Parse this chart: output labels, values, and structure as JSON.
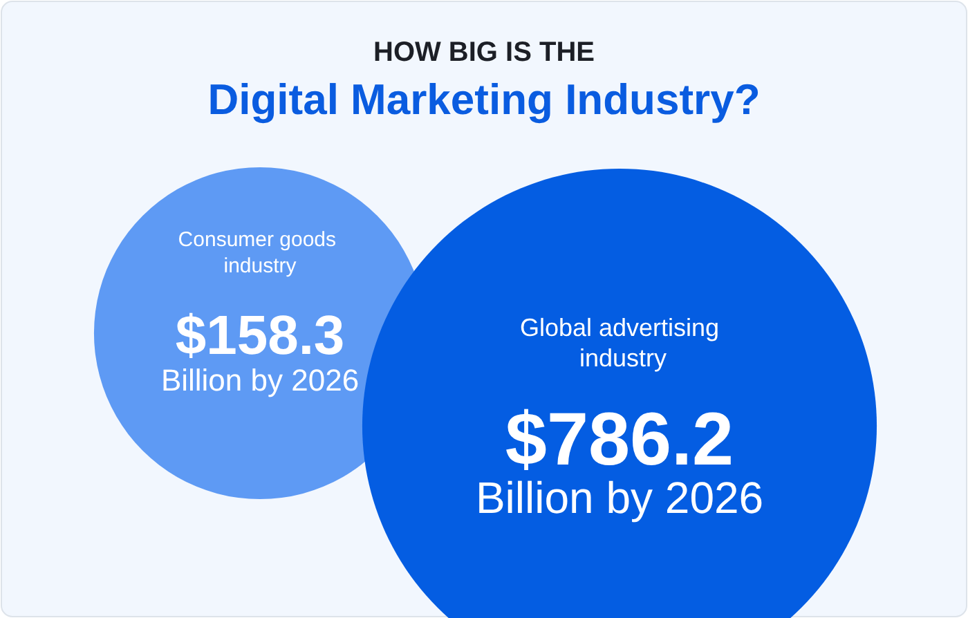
{
  "chart_data": {
    "type": "other",
    "title": "HOW BIG IS THE",
    "subtitle": "Digital Marketing Industry?",
    "categories": [
      "Consumer goods industry",
      "Global advertising industry"
    ],
    "values": [
      158.3,
      786.2
    ],
    "value_labels": [
      "$158.3",
      "$786.2"
    ],
    "colors": [
      "#5e9af4",
      "#045de2"
    ],
    "annotations": [
      "Billion by 2026",
      "Billion by 2026"
    ]
  }
}
